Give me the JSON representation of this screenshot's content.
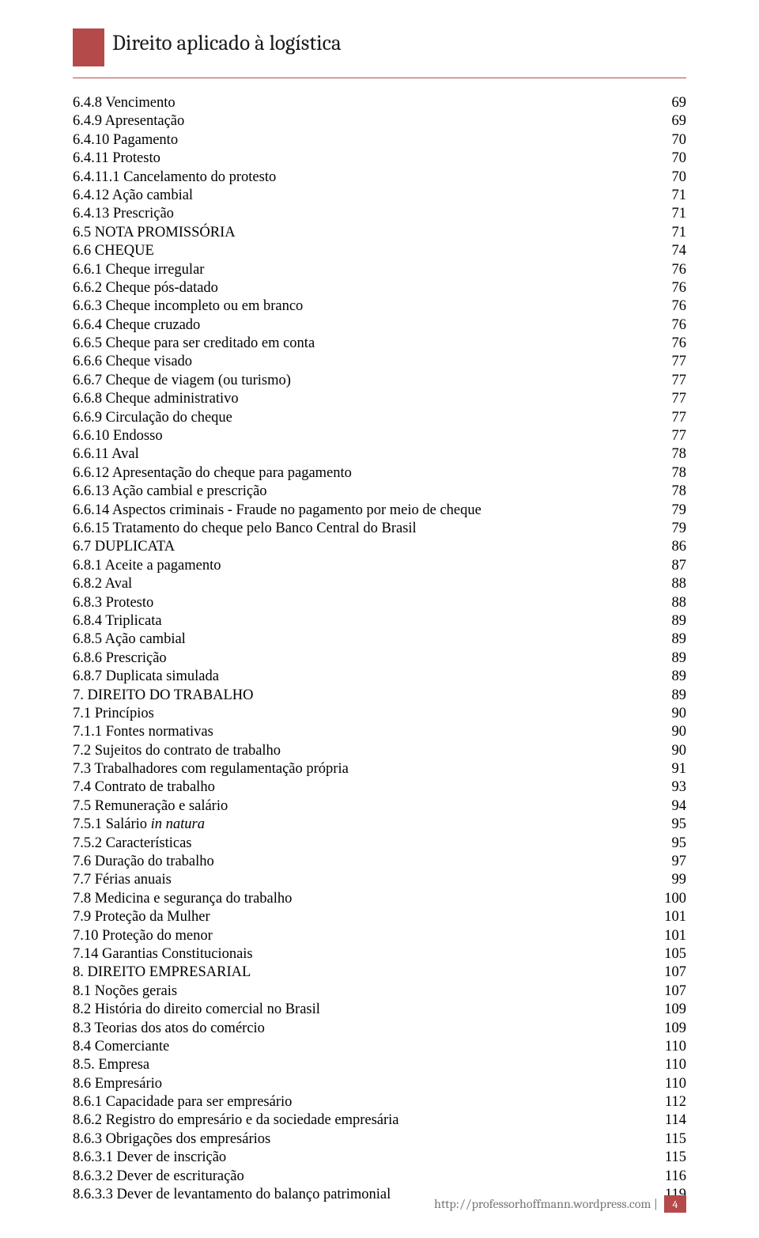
{
  "colors": {
    "accent": "#b44a4a",
    "text": "#000000",
    "header_text": "#1a1a1a",
    "footer_text": "#777777",
    "background": "#ffffff"
  },
  "typography": {
    "header_font": "Cambria",
    "body_font": "Times New Roman",
    "header_fontsize_pt": 20,
    "body_fontsize_pt": 14,
    "line_height": 1.265
  },
  "header": {
    "title": "Direito aplicado à logística"
  },
  "toc": {
    "entries": [
      {
        "title": "6.4.8 Vencimento",
        "page": "69"
      },
      {
        "title": "6.4.9 Apresentação",
        "page": "69"
      },
      {
        "title": "6.4.10 Pagamento",
        "page": "70"
      },
      {
        "title": "6.4.11 Protesto",
        "page": "70"
      },
      {
        "title": "6.4.11.1 Cancelamento do protesto",
        "page": "70"
      },
      {
        "title": "6.4.12 Ação cambial",
        "page": "71"
      },
      {
        "title": "6.4.13 Prescrição",
        "page": "71"
      },
      {
        "title": "6.5 NOTA PROMISSÓRIA",
        "page": "71"
      },
      {
        "title": "6.6 CHEQUE",
        "page": "74"
      },
      {
        "title": "6.6.1 Cheque irregular",
        "page": "76"
      },
      {
        "title": "6.6.2 Cheque pós-datado",
        "page": "76"
      },
      {
        "title": "6.6.3 Cheque incompleto ou em branco",
        "page": "76"
      },
      {
        "title": "6.6.4 Cheque cruzado",
        "page": "76"
      },
      {
        "title": "6.6.5 Cheque para ser creditado em conta",
        "page": "76"
      },
      {
        "title": "6.6.6 Cheque visado",
        "page": "77"
      },
      {
        "title": "6.6.7 Cheque de viagem (ou turismo)",
        "page": "77"
      },
      {
        "title": "6.6.8 Cheque administrativo",
        "page": "77"
      },
      {
        "title": "6.6.9 Circulação do cheque",
        "page": "77"
      },
      {
        "title": "6.6.10 Endosso",
        "page": "77"
      },
      {
        "title": "6.6.11 Aval",
        "page": "78"
      },
      {
        "title": "6.6.12 Apresentação do cheque para pagamento",
        "page": "78"
      },
      {
        "title": "6.6.13 Ação cambial e prescrição",
        "page": "78"
      },
      {
        "title": "6.6.14 Aspectos criminais - Fraude no pagamento por meio de cheque",
        "page": "79"
      },
      {
        "title": "6.6.15 Tratamento do cheque pelo Banco Central do Brasil",
        "page": "79"
      },
      {
        "title": "6.7 DUPLICATA",
        "page": "86"
      },
      {
        "title": "6.8.1 Aceite a pagamento",
        "page": "87"
      },
      {
        "title": "6.8.2 Aval",
        "page": "88"
      },
      {
        "title": "6.8.3 Protesto",
        "page": "88"
      },
      {
        "title": "6.8.4 Triplicata",
        "page": "89"
      },
      {
        "title": "6.8.5 Ação cambial",
        "page": "89"
      },
      {
        "title": "6.8.6 Prescrição",
        "page": "89"
      },
      {
        "title": "6.8.7 Duplicata simulada",
        "page": "89"
      },
      {
        "title": "7. DIREITO DO TRABALHO",
        "page": "89"
      },
      {
        "title": "7.1 Princípios",
        "page": "90"
      },
      {
        "title": "7.1.1 Fontes normativas",
        "page": "90"
      },
      {
        "title": "7.2 Sujeitos do contrato de trabalho",
        "page": "90"
      },
      {
        "title": "7.3 Trabalhadores com regulamentação própria",
        "page": "91"
      },
      {
        "title": "7.4 Contrato de trabalho",
        "page": "93"
      },
      {
        "title": "7.5 Remuneração e salário",
        "page": "94"
      },
      {
        "title_pre": "7.5.1 Salário ",
        "title_italic": "in natura",
        "page": "95"
      },
      {
        "title": "7.5.2 Características",
        "page": "95"
      },
      {
        "title": "7.6 Duração do trabalho",
        "page": "97"
      },
      {
        "title": "7.7 Férias anuais",
        "page": "99"
      },
      {
        "title": "7.8 Medicina e segurança do trabalho",
        "page": "100"
      },
      {
        "title": "7.9 Proteção da Mulher",
        "page": "101"
      },
      {
        "title": "7.10 Proteção do menor",
        "page": "101"
      },
      {
        "title": "7.14 Garantias Constitucionais",
        "page": "105"
      },
      {
        "title": "8. DIREITO EMPRESARIAL",
        "page": "107"
      },
      {
        "title": "8.1 Noções gerais",
        "page": "107"
      },
      {
        "title": "8.2 História do direito comercial no Brasil",
        "page": "109"
      },
      {
        "title": "8.3 Teorias dos atos do comércio",
        "page": "109"
      },
      {
        "title": "8.4 Comerciante",
        "page": "110"
      },
      {
        "title": "8.5. Empresa",
        "page": "110"
      },
      {
        "title": "8.6 Empresário",
        "page": "110"
      },
      {
        "title": "8.6.1 Capacidade para ser empresário",
        "page": "112"
      },
      {
        "title": "8.6.2 Registro do empresário e da sociedade empresária",
        "page": "114"
      },
      {
        "title": "8.6.3 Obrigações dos empresários",
        "page": "115"
      },
      {
        "title": "8.6.3.1 Dever de inscrição",
        "page": "115"
      },
      {
        "title": "8.6.3.2 Dever de escrituração",
        "page": "116"
      },
      {
        "title": "8.6.3.3 Dever de levantamento do balanço patrimonial",
        "page": "119"
      }
    ]
  },
  "footer": {
    "url": "http://professorhoffmann.wordpress.com |",
    "page_number": "4"
  }
}
